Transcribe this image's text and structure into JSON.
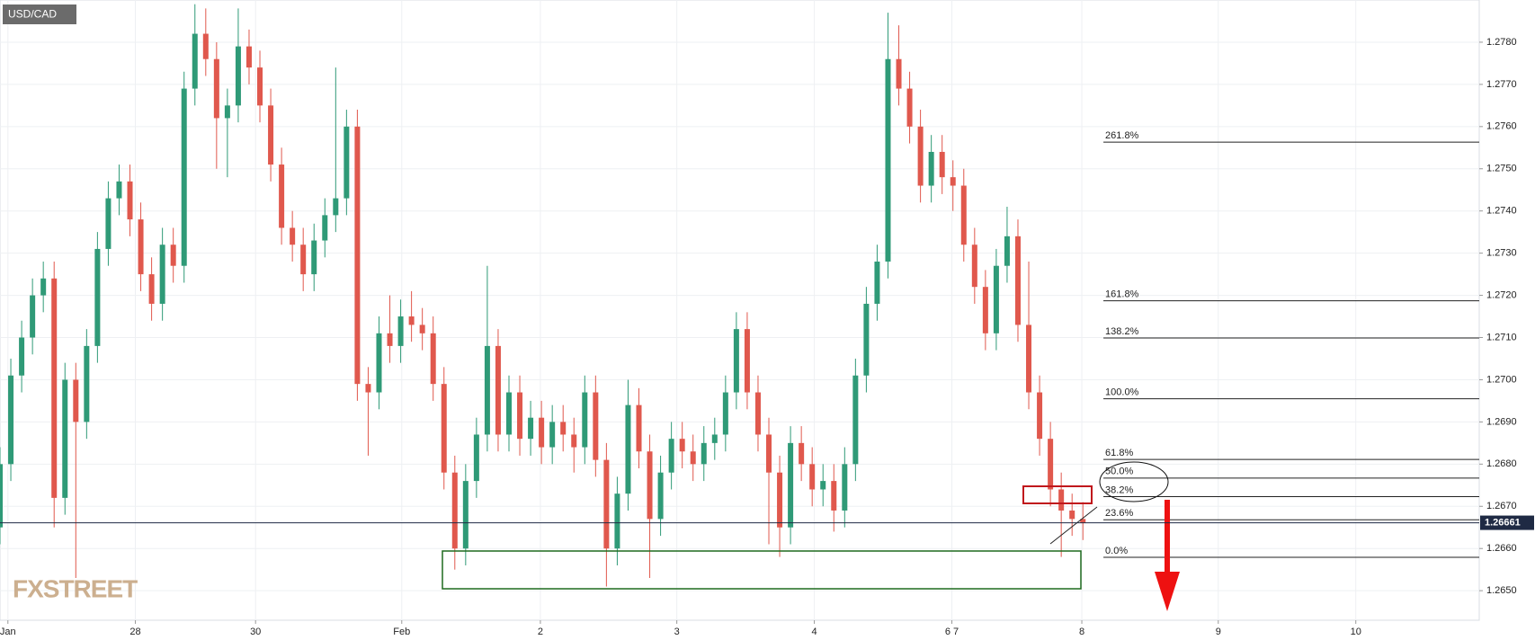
{
  "chart_data": {
    "type": "candlestick",
    "title": "USD/CAD",
    "watermark": "FXSTREET",
    "up_color": "#2f9a77",
    "down_color": "#e0584d",
    "grid": true,
    "x": [
      0,
      1,
      2,
      3,
      4,
      5,
      6,
      7,
      8,
      9,
      10,
      11,
      12,
      13,
      14,
      15,
      16,
      17,
      18,
      19,
      20,
      21,
      22,
      23,
      24,
      25,
      26,
      27,
      28,
      29,
      30,
      31,
      32,
      33,
      34,
      35,
      36,
      37,
      38,
      39,
      40,
      41,
      42,
      43,
      44,
      45,
      46,
      47,
      48,
      49,
      50,
      51,
      52,
      53,
      54,
      55,
      56,
      57,
      58,
      59,
      60,
      61,
      62,
      63,
      64,
      65,
      66,
      67,
      68,
      69,
      70,
      71,
      72,
      73,
      74,
      75,
      76,
      77,
      78,
      79,
      80,
      81,
      82,
      83,
      84,
      85,
      86,
      87,
      88,
      89,
      90,
      91,
      92,
      93,
      94,
      95,
      96,
      97,
      98,
      99,
      100
    ],
    "open": [
      1.2665,
      1.268,
      1.2701,
      1.271,
      1.272,
      1.2724,
      1.2672,
      1.27,
      1.269,
      1.2708,
      1.2731,
      1.2743,
      1.2747,
      1.2738,
      1.2725,
      1.2718,
      1.2732,
      1.2727,
      1.2769,
      1.2782,
      1.2776,
      1.2762,
      1.2765,
      1.2779,
      1.2774,
      1.2765,
      1.2751,
      1.2736,
      1.2732,
      1.2725,
      1.2733,
      1.2739,
      1.2743,
      1.276,
      1.2699,
      1.2697,
      1.2711,
      1.2708,
      1.2715,
      1.2713,
      1.2711,
      1.2699,
      1.2678,
      1.266,
      1.2676,
      1.2687,
      1.2708,
      1.2687,
      1.2697,
      1.2686,
      1.2691,
      1.2684,
      1.269,
      1.2687,
      1.2684,
      1.2697,
      1.2681,
      1.266,
      1.2673,
      1.2694,
      1.2683,
      1.2667,
      1.2678,
      1.2686,
      1.2683,
      1.268,
      1.2685,
      1.2687,
      1.2697,
      1.2712,
      1.2697,
      1.2687,
      1.2678,
      1.2665,
      1.2685,
      1.268,
      1.2674,
      1.2676,
      1.2669,
      1.268,
      1.2701,
      1.2718,
      1.2728,
      1.2776,
      1.2769,
      1.276,
      1.2746,
      1.2754,
      1.2748,
      1.2746,
      1.2732,
      1.2722,
      1.2711,
      1.2727,
      1.2734,
      1.2713,
      1.2697,
      1.2686,
      1.2674,
      1.2669,
      1.2667
    ],
    "high": [
      1.2684,
      1.2705,
      1.2714,
      1.2724,
      1.2728,
      1.2728,
      1.2704,
      1.2704,
      1.2712,
      1.2735,
      1.2747,
      1.2751,
      1.2751,
      1.2742,
      1.2729,
      1.2736,
      1.2736,
      1.2773,
      1.2789,
      1.2788,
      1.278,
      1.2769,
      1.2788,
      1.2783,
      1.2778,
      1.2769,
      1.2755,
      1.274,
      1.2736,
      1.2737,
      1.2743,
      1.2774,
      1.2764,
      1.2764,
      1.2703,
      1.2715,
      1.272,
      1.2719,
      1.2721,
      1.2717,
      1.2715,
      1.2703,
      1.2682,
      1.268,
      1.2691,
      1.2727,
      1.2712,
      1.2701,
      1.2701,
      1.2695,
      1.2695,
      1.2694,
      1.2694,
      1.2691,
      1.2701,
      1.2701,
      1.2685,
      1.2677,
      1.27,
      1.2698,
      1.2687,
      1.2682,
      1.269,
      1.269,
      1.2687,
      1.2689,
      1.2691,
      1.2701,
      1.2716,
      1.2716,
      1.2701,
      1.2691,
      1.2682,
      1.2689,
      1.2689,
      1.2684,
      1.268,
      1.268,
      1.2684,
      1.2705,
      1.2722,
      1.2732,
      1.2787,
      1.2784,
      1.2773,
      1.2764,
      1.2758,
      1.2758,
      1.2752,
      1.275,
      1.2736,
      1.2726,
      1.2731,
      1.2741,
      1.2738,
      1.2728,
      1.2701,
      1.269,
      1.2678,
      1.2673,
      1.2671
    ],
    "low": [
      1.2661,
      1.2676,
      1.2697,
      1.2706,
      1.2716,
      1.2665,
      1.2668,
      1.2653,
      1.2686,
      1.2704,
      1.2727,
      1.2739,
      1.2734,
      1.2721,
      1.2714,
      1.2714,
      1.2723,
      1.2723,
      1.2765,
      1.2772,
      1.275,
      1.2748,
      1.2761,
      1.277,
      1.2761,
      1.2747,
      1.2732,
      1.2728,
      1.2721,
      1.2721,
      1.2729,
      1.2735,
      1.2739,
      1.2695,
      1.2682,
      1.2693,
      1.2704,
      1.2704,
      1.2709,
      1.2707,
      1.2695,
      1.2674,
      1.2655,
      1.2656,
      1.2672,
      1.2683,
      1.2683,
      1.2683,
      1.2682,
      1.2682,
      1.268,
      1.268,
      1.2683,
      1.2678,
      1.268,
      1.2677,
      1.2651,
      1.2656,
      1.2669,
      1.2679,
      1.2653,
      1.2663,
      1.2674,
      1.2679,
      1.2676,
      1.2676,
      1.2681,
      1.2683,
      1.2693,
      1.2693,
      1.2683,
      1.2661,
      1.2658,
      1.2661,
      1.2676,
      1.267,
      1.267,
      1.2664,
      1.2665,
      1.2676,
      1.2697,
      1.2714,
      1.2724,
      1.2765,
      1.2756,
      1.2742,
      1.2742,
      1.2744,
      1.274,
      1.2728,
      1.2718,
      1.2707,
      1.2707,
      1.2723,
      1.2709,
      1.2693,
      1.2682,
      1.267,
      1.2658,
      1.2663,
      1.2662
    ],
    "close": [
      1.268,
      1.2701,
      1.271,
      1.272,
      1.2724,
      1.2672,
      1.27,
      1.269,
      1.2708,
      1.2731,
      1.2743,
      1.2747,
      1.2738,
      1.2725,
      1.2718,
      1.2732,
      1.2727,
      1.2769,
      1.2782,
      1.2776,
      1.2762,
      1.2765,
      1.2779,
      1.2774,
      1.2765,
      1.2751,
      1.2736,
      1.2732,
      1.2725,
      1.2733,
      1.2739,
      1.2743,
      1.276,
      1.2699,
      1.2697,
      1.2711,
      1.2708,
      1.2715,
      1.2713,
      1.2711,
      1.2699,
      1.2678,
      1.266,
      1.2676,
      1.2687,
      1.2708,
      1.2687,
      1.2697,
      1.2686,
      1.2691,
      1.2684,
      1.269,
      1.2687,
      1.2684,
      1.2697,
      1.2681,
      1.266,
      1.2673,
      1.2694,
      1.2683,
      1.2667,
      1.2678,
      1.2686,
      1.2683,
      1.268,
      1.2685,
      1.2687,
      1.2697,
      1.2712,
      1.2697,
      1.2687,
      1.2678,
      1.2665,
      1.2685,
      1.268,
      1.2674,
      1.2676,
      1.2669,
      1.268,
      1.2701,
      1.2718,
      1.2728,
      1.2776,
      1.2769,
      1.276,
      1.2746,
      1.2754,
      1.2748,
      1.2746,
      1.2732,
      1.2722,
      1.2711,
      1.2727,
      1.2734,
      1.2713,
      1.2697,
      1.2686,
      1.2674,
      1.2669,
      1.2667,
      1.2666
    ],
    "xlim": [
      0,
      136.6
    ],
    "xticks": [
      {
        "value": 0.73,
        "label": "Jan"
      },
      {
        "value": 12.5,
        "label": "28"
      },
      {
        "value": 23.6,
        "label": "30"
      },
      {
        "value": 37.1,
        "label": "Feb"
      },
      {
        "value": 49.9,
        "label": "2"
      },
      {
        "value": 62.5,
        "label": "3"
      },
      {
        "value": 75.2,
        "label": "4"
      },
      {
        "value": 87.9,
        "label": "6 7"
      },
      {
        "value": 99.9,
        "label": "8"
      },
      {
        "value": 112.5,
        "label": "9"
      },
      {
        "value": 125.2,
        "label": "10"
      }
    ],
    "ylim": [
      1.2643,
      1.279
    ],
    "yticks": [
      {
        "value": 1.265,
        "label": "1.2650"
      },
      {
        "value": 1.266,
        "label": "1.2660"
      },
      {
        "value": 1.267,
        "label": "1.2670"
      },
      {
        "value": 1.268,
        "label": "1.2680"
      },
      {
        "value": 1.269,
        "label": "1.2690"
      },
      {
        "value": 1.27,
        "label": "1.2700"
      },
      {
        "value": 1.271,
        "label": "1.2710"
      },
      {
        "value": 1.272,
        "label": "1.2720"
      },
      {
        "value": 1.273,
        "label": "1.2730"
      },
      {
        "value": 1.274,
        "label": "1.2740"
      },
      {
        "value": 1.275,
        "label": "1.2750"
      },
      {
        "value": 1.276,
        "label": "1.2760"
      },
      {
        "value": 1.277,
        "label": "1.2770"
      },
      {
        "value": 1.278,
        "label": "1.2780"
      }
    ],
    "last_price": 1.26661,
    "fib_levels": [
      {
        "label": "261.8%",
        "value": 1.27563
      },
      {
        "label": "161.8%",
        "value": 1.27187
      },
      {
        "label": "138.2%",
        "value": 1.27099
      },
      {
        "label": "100.0%",
        "value": 1.26955
      },
      {
        "label": "61.8%",
        "value": 1.26811
      },
      {
        "label": "50.0%",
        "value": 1.26767
      },
      {
        "label": "38.2%",
        "value": 1.26723
      },
      {
        "label": "23.6%",
        "value": 1.26668
      },
      {
        "label": "0.0%",
        "value": 1.26579
      }
    ]
  }
}
